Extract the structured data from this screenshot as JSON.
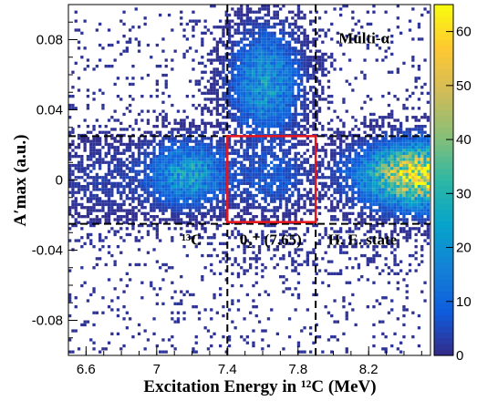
{
  "chart_data": {
    "type": "heatmap",
    "title": "",
    "xlabel": "Excitation Energy in ¹²C (MeV)",
    "ylabel": "A′max (a.u.)",
    "xlim": [
      6.5,
      8.55
    ],
    "ylim": [
      -0.1,
      0.1
    ],
    "x_ticks": [
      "6.6",
      "7",
      "7.4",
      "7.8",
      "8.2"
    ],
    "x_tick_values": [
      6.6,
      7.0,
      7.4,
      7.8,
      8.2
    ],
    "y_ticks": [
      "-0.08",
      "-0.04",
      "0",
      "0.04",
      "0.08"
    ],
    "y_tick_values": [
      -0.08,
      -0.04,
      0.0,
      0.04,
      0.08
    ],
    "colorbar": {
      "min": 0,
      "max": 65,
      "ticks": [
        "0",
        "10",
        "20",
        "30",
        "40",
        "50",
        "60"
      ],
      "tick_values": [
        0,
        10,
        20,
        30,
        40,
        50,
        60
      ],
      "colors": [
        "#352a87",
        "#0f5cdd",
        "#1481d6",
        "#06a4ca",
        "#2eb7a4",
        "#87bf77",
        "#d1bb59",
        "#fec832",
        "#f9fb0e"
      ]
    },
    "grid": false,
    "clusters": [
      {
        "x": 7.62,
        "y": 0.055,
        "sx": 0.12,
        "sy": 0.018,
        "peak": 22
      },
      {
        "x": 7.18,
        "y": 0.003,
        "sx": 0.14,
        "sy": 0.011,
        "peak": 24
      },
      {
        "x": 7.65,
        "y": 0.0,
        "sx": 0.12,
        "sy": 0.011,
        "peak": 8
      },
      {
        "x": 8.52,
        "y": 0.002,
        "sx": 0.22,
        "sy": 0.011,
        "peak": 60
      },
      {
        "x": 6.7,
        "y": 0.0,
        "sx": 0.2,
        "sy": 0.014,
        "peak": 3
      }
    ],
    "dashed_lines": {
      "vertical": [
        7.4,
        7.9
      ],
      "horizontal": [
        -0.025,
        0.025
      ]
    },
    "highlight_box": {
      "x0": 7.4,
      "x1": 7.9,
      "y0": -0.024,
      "y1": 0.025,
      "color": "#e8141b"
    },
    "annotations": [
      {
        "text": "Multi-α",
        "x": 8.03,
        "y": 0.078
      },
      {
        "text": "¹³C",
        "x": 7.14,
        "y": -0.037
      },
      {
        "text": "0₂⁺ (7.65)",
        "x": 7.47,
        "y": -0.037
      },
      {
        "text": "H. E. state",
        "x": 7.97,
        "y": -0.037
      }
    ]
  }
}
